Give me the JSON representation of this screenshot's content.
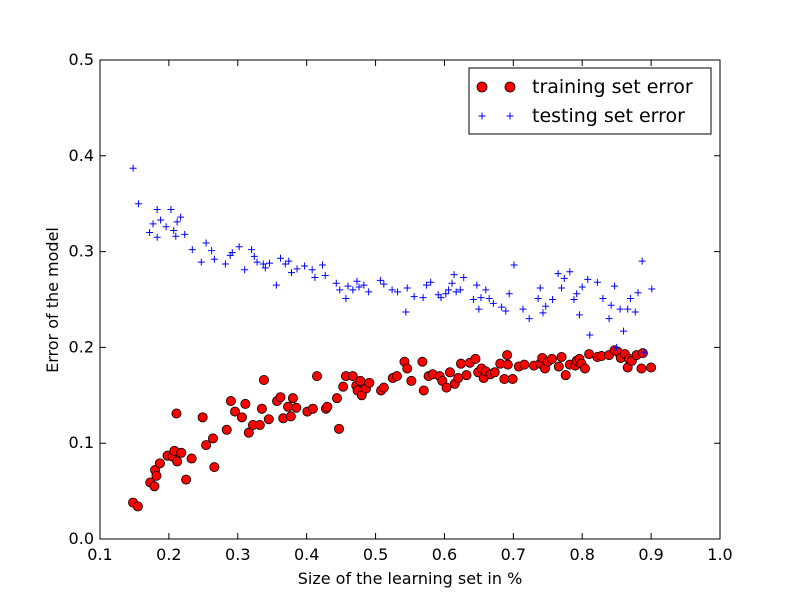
{
  "chart_data": {
    "type": "scatter",
    "title": "",
    "xlabel": "Size of the learning set in %",
    "ylabel": "Error of the model",
    "xlim": [
      0.1,
      1.0
    ],
    "ylim": [
      0.0,
      0.5
    ],
    "xticks": [
      "0.1",
      "0.2",
      "0.3",
      "0.4",
      "0.5",
      "0.6",
      "0.7",
      "0.8",
      "0.9",
      "1.0"
    ],
    "yticks": [
      "0.0",
      "0.1",
      "0.2",
      "0.3",
      "0.4",
      "0.5"
    ],
    "grid": false,
    "legend_position": "top-right",
    "series": [
      {
        "name": "training set error",
        "marker": "circle",
        "color": "#ff0000",
        "edge_color": "#000000",
        "points": [
          [
            0.148,
            0.038
          ],
          [
            0.155,
            0.034
          ],
          [
            0.173,
            0.059
          ],
          [
            0.179,
            0.055
          ],
          [
            0.18,
            0.072
          ],
          [
            0.182,
            0.066
          ],
          [
            0.187,
            0.079
          ],
          [
            0.198,
            0.087
          ],
          [
            0.205,
            0.086
          ],
          [
            0.208,
            0.092
          ],
          [
            0.211,
            0.131
          ],
          [
            0.212,
            0.081
          ],
          [
            0.218,
            0.09
          ],
          [
            0.225,
            0.062
          ],
          [
            0.233,
            0.084
          ],
          [
            0.249,
            0.127
          ],
          [
            0.254,
            0.098
          ],
          [
            0.264,
            0.105
          ],
          [
            0.266,
            0.075
          ],
          [
            0.284,
            0.114
          ],
          [
            0.29,
            0.144
          ],
          [
            0.296,
            0.133
          ],
          [
            0.306,
            0.127
          ],
          [
            0.311,
            0.141
          ],
          [
            0.316,
            0.111
          ],
          [
            0.322,
            0.119
          ],
          [
            0.332,
            0.119
          ],
          [
            0.335,
            0.136
          ],
          [
            0.338,
            0.166
          ],
          [
            0.345,
            0.125
          ],
          [
            0.357,
            0.144
          ],
          [
            0.362,
            0.148
          ],
          [
            0.366,
            0.126
          ],
          [
            0.373,
            0.138
          ],
          [
            0.377,
            0.128
          ],
          [
            0.38,
            0.147
          ],
          [
            0.385,
            0.137
          ],
          [
            0.401,
            0.133
          ],
          [
            0.409,
            0.136
          ],
          [
            0.415,
            0.17
          ],
          [
            0.428,
            0.136
          ],
          [
            0.43,
            0.138
          ],
          [
            0.444,
            0.147
          ],
          [
            0.447,
            0.115
          ],
          [
            0.453,
            0.159
          ],
          [
            0.457,
            0.17
          ],
          [
            0.467,
            0.17
          ],
          [
            0.472,
            0.16
          ],
          [
            0.474,
            0.155
          ],
          [
            0.478,
            0.165
          ],
          [
            0.48,
            0.15
          ],
          [
            0.486,
            0.157
          ],
          [
            0.491,
            0.163
          ],
          [
            0.508,
            0.155
          ],
          [
            0.512,
            0.158
          ],
          [
            0.525,
            0.168
          ],
          [
            0.531,
            0.17
          ],
          [
            0.542,
            0.185
          ],
          [
            0.546,
            0.178
          ],
          [
            0.552,
            0.165
          ],
          [
            0.568,
            0.185
          ],
          [
            0.57,
            0.155
          ],
          [
            0.577,
            0.17
          ],
          [
            0.583,
            0.172
          ],
          [
            0.593,
            0.17
          ],
          [
            0.597,
            0.165
          ],
          [
            0.603,
            0.158
          ],
          [
            0.608,
            0.174
          ],
          [
            0.615,
            0.162
          ],
          [
            0.62,
            0.168
          ],
          [
            0.624,
            0.183
          ],
          [
            0.632,
            0.171
          ],
          [
            0.637,
            0.184
          ],
          [
            0.645,
            0.188
          ],
          [
            0.649,
            0.174
          ],
          [
            0.654,
            0.178
          ],
          [
            0.657,
            0.168
          ],
          [
            0.66,
            0.175
          ],
          [
            0.667,
            0.172
          ],
          [
            0.673,
            0.174
          ],
          [
            0.681,
            0.183
          ],
          [
            0.687,
            0.167
          ],
          [
            0.691,
            0.192
          ],
          [
            0.692,
            0.182
          ],
          [
            0.699,
            0.167
          ],
          [
            0.708,
            0.18
          ],
          [
            0.716,
            0.182
          ],
          [
            0.73,
            0.181
          ],
          [
            0.739,
            0.183
          ],
          [
            0.742,
            0.189
          ],
          [
            0.746,
            0.178
          ],
          [
            0.75,
            0.185
          ],
          [
            0.756,
            0.188
          ],
          [
            0.766,
            0.18
          ],
          [
            0.77,
            0.19
          ],
          [
            0.776,
            0.171
          ],
          [
            0.782,
            0.182
          ],
          [
            0.79,
            0.181
          ],
          [
            0.792,
            0.186
          ],
          [
            0.796,
            0.188
          ],
          [
            0.799,
            0.183
          ],
          [
            0.804,
            0.178
          ],
          [
            0.81,
            0.193
          ],
          [
            0.822,
            0.19
          ],
          [
            0.828,
            0.191
          ],
          [
            0.839,
            0.192
          ],
          [
            0.847,
            0.197
          ],
          [
            0.852,
            0.195
          ],
          [
            0.856,
            0.189
          ],
          [
            0.862,
            0.193
          ],
          [
            0.866,
            0.179
          ],
          [
            0.868,
            0.188
          ],
          [
            0.872,
            0.186
          ],
          [
            0.879,
            0.192
          ],
          [
            0.886,
            0.178
          ],
          [
            0.888,
            0.194
          ],
          [
            0.9,
            0.179
          ]
        ]
      },
      {
        "name": "testing set error",
        "marker": "plus",
        "color": "#0000ff",
        "points": [
          [
            0.148,
            0.387
          ],
          [
            0.156,
            0.35
          ],
          [
            0.172,
            0.32
          ],
          [
            0.177,
            0.329
          ],
          [
            0.183,
            0.344
          ],
          [
            0.183,
            0.315
          ],
          [
            0.188,
            0.333
          ],
          [
            0.196,
            0.326
          ],
          [
            0.203,
            0.344
          ],
          [
            0.207,
            0.322
          ],
          [
            0.21,
            0.316
          ],
          [
            0.212,
            0.331
          ],
          [
            0.217,
            0.336
          ],
          [
            0.223,
            0.318
          ],
          [
            0.234,
            0.302
          ],
          [
            0.247,
            0.289
          ],
          [
            0.254,
            0.309
          ],
          [
            0.262,
            0.301
          ],
          [
            0.266,
            0.292
          ],
          [
            0.282,
            0.287
          ],
          [
            0.289,
            0.296
          ],
          [
            0.292,
            0.299
          ],
          [
            0.302,
            0.305
          ],
          [
            0.31,
            0.281
          ],
          [
            0.32,
            0.302
          ],
          [
            0.324,
            0.295
          ],
          [
            0.328,
            0.289
          ],
          [
            0.337,
            0.287
          ],
          [
            0.34,
            0.283
          ],
          [
            0.346,
            0.288
          ],
          [
            0.356,
            0.265
          ],
          [
            0.362,
            0.293
          ],
          [
            0.369,
            0.287
          ],
          [
            0.374,
            0.29
          ],
          [
            0.378,
            0.278
          ],
          [
            0.386,
            0.282
          ],
          [
            0.397,
            0.285
          ],
          [
            0.408,
            0.281
          ],
          [
            0.412,
            0.273
          ],
          [
            0.423,
            0.286
          ],
          [
            0.427,
            0.275
          ],
          [
            0.443,
            0.267
          ],
          [
            0.448,
            0.26
          ],
          [
            0.457,
            0.251
          ],
          [
            0.46,
            0.264
          ],
          [
            0.467,
            0.26
          ],
          [
            0.473,
            0.269
          ],
          [
            0.476,
            0.263
          ],
          [
            0.483,
            0.265
          ],
          [
            0.49,
            0.258
          ],
          [
            0.507,
            0.27
          ],
          [
            0.512,
            0.266
          ],
          [
            0.524,
            0.26
          ],
          [
            0.532,
            0.258
          ],
          [
            0.544,
            0.237
          ],
          [
            0.546,
            0.262
          ],
          [
            0.556,
            0.253
          ],
          [
            0.569,
            0.252
          ],
          [
            0.574,
            0.265
          ],
          [
            0.58,
            0.268
          ],
          [
            0.591,
            0.255
          ],
          [
            0.595,
            0.252
          ],
          [
            0.602,
            0.256
          ],
          [
            0.606,
            0.26
          ],
          [
            0.611,
            0.267
          ],
          [
            0.614,
            0.276
          ],
          [
            0.617,
            0.258
          ],
          [
            0.623,
            0.26
          ],
          [
            0.628,
            0.273
          ],
          [
            0.642,
            0.25
          ],
          [
            0.647,
            0.265
          ],
          [
            0.65,
            0.24
          ],
          [
            0.653,
            0.252
          ],
          [
            0.66,
            0.26
          ],
          [
            0.665,
            0.251
          ],
          [
            0.671,
            0.246
          ],
          [
            0.683,
            0.242
          ],
          [
            0.689,
            0.238
          ],
          [
            0.694,
            0.256
          ],
          [
            0.701,
            0.286
          ],
          [
            0.714,
            0.24
          ],
          [
            0.723,
            0.23
          ],
          [
            0.736,
            0.251
          ],
          [
            0.739,
            0.262
          ],
          [
            0.743,
            0.236
          ],
          [
            0.747,
            0.243
          ],
          [
            0.757,
            0.25
          ],
          [
            0.765,
            0.277
          ],
          [
            0.77,
            0.262
          ],
          [
            0.774,
            0.272
          ],
          [
            0.782,
            0.279
          ],
          [
            0.788,
            0.25
          ],
          [
            0.792,
            0.256
          ],
          [
            0.796,
            0.234
          ],
          [
            0.8,
            0.263
          ],
          [
            0.808,
            0.271
          ],
          [
            0.811,
            0.213
          ],
          [
            0.822,
            0.268
          ],
          [
            0.83,
            0.251
          ],
          [
            0.839,
            0.23
          ],
          [
            0.842,
            0.244
          ],
          [
            0.847,
            0.264
          ],
          [
            0.85,
            0.2
          ],
          [
            0.855,
            0.24
          ],
          [
            0.86,
            0.217
          ],
          [
            0.866,
            0.24
          ],
          [
            0.87,
            0.251
          ],
          [
            0.877,
            0.237
          ],
          [
            0.881,
            0.257
          ],
          [
            0.887,
            0.29
          ],
          [
            0.89,
            0.195
          ],
          [
            0.901,
            0.261
          ]
        ]
      }
    ]
  }
}
